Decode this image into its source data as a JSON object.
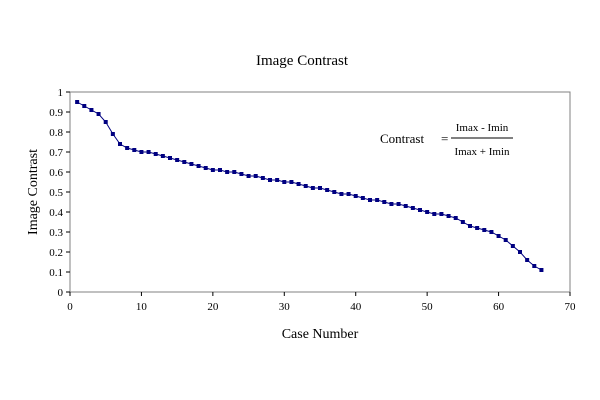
{
  "chart_data": {
    "type": "line",
    "title": "Image Contrast",
    "xlabel": "Case Number",
    "ylabel": "Image Contrast",
    "xlim": [
      0,
      70
    ],
    "ylim": [
      0,
      1
    ],
    "x_ticks": [
      "0",
      "10",
      "20",
      "30",
      "40",
      "50",
      "60",
      "70"
    ],
    "y_ticks": [
      "0",
      "0.1",
      "0.2",
      "0.3",
      "0.4",
      "0.5",
      "0.6",
      "0.7",
      "0.8",
      "0.9",
      "1"
    ],
    "grid": false,
    "legend": "none",
    "series_color": "#000080",
    "series": [
      {
        "x": [
          1,
          2,
          3,
          4,
          5,
          6,
          7,
          8,
          9,
          10,
          11,
          12,
          13,
          14,
          15,
          16,
          17,
          18,
          19,
          20,
          21,
          22,
          23,
          24,
          25,
          26,
          27,
          28,
          29,
          30,
          31,
          32,
          33,
          34,
          35,
          36,
          37,
          38,
          39,
          40,
          41,
          42,
          43,
          44,
          45,
          46,
          47,
          48,
          49,
          50,
          51,
          52,
          53,
          54,
          55,
          56,
          57,
          58,
          59,
          60,
          61,
          62,
          63,
          64,
          65,
          66
        ],
        "values": [
          0.95,
          0.93,
          0.91,
          0.89,
          0.85,
          0.79,
          0.74,
          0.72,
          0.71,
          0.7,
          0.7,
          0.69,
          0.68,
          0.67,
          0.66,
          0.65,
          0.64,
          0.63,
          0.62,
          0.61,
          0.61,
          0.6,
          0.6,
          0.59,
          0.58,
          0.58,
          0.57,
          0.56,
          0.56,
          0.55,
          0.55,
          0.54,
          0.53,
          0.52,
          0.52,
          0.51,
          0.5,
          0.49,
          0.49,
          0.48,
          0.47,
          0.46,
          0.46,
          0.45,
          0.44,
          0.44,
          0.43,
          0.42,
          0.41,
          0.4,
          0.39,
          0.39,
          0.38,
          0.37,
          0.35,
          0.33,
          0.32,
          0.31,
          0.3,
          0.28,
          0.26,
          0.23,
          0.2,
          0.16,
          0.13,
          0.11
        ]
      }
    ],
    "annotation": {
      "lhs": "Contrast",
      "equals": "=",
      "numerator": "Imax - Imin",
      "denominator": "Imax + Imin"
    }
  }
}
